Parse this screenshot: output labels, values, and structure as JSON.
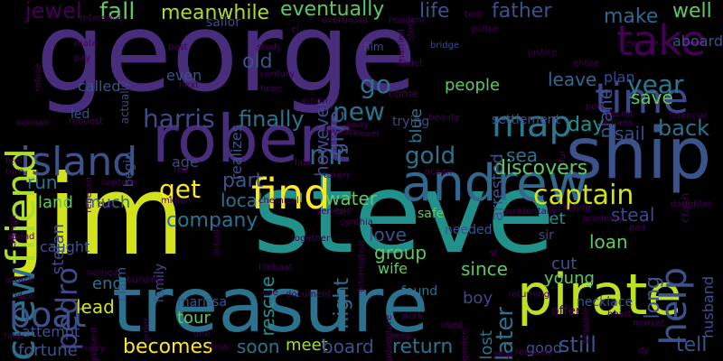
{
  "palette": {
    "background": "#000000",
    "dark_purple": "#440154",
    "purple": "#472d7b",
    "indigo": "#3b528b",
    "blue": "#2c728e",
    "teal": "#21918c",
    "green": "#28ae80",
    "light_green": "#5ec962",
    "lime": "#addc30",
    "yellow": "#fde725"
  },
  "words": [
    {
      "text": "george",
      "color": "#472d7b"
    },
    {
      "text": "jim",
      "color": "#d2e21b"
    },
    {
      "text": "steve",
      "color": "#21918c"
    },
    {
      "text": "robert",
      "color": "#472d7b"
    },
    {
      "text": "ship",
      "color": "#3b528b"
    },
    {
      "text": "treasure",
      "color": "#2c728e"
    },
    {
      "text": "pirate",
      "color": "#bddf26"
    },
    {
      "text": "take",
      "color": "#440154"
    },
    {
      "text": "andrew",
      "color": "#31688e"
    },
    {
      "text": "find",
      "color": "#fde725"
    },
    {
      "text": "island",
      "color": "#3b528b"
    },
    {
      "text": "time",
      "color": "#3e4989"
    },
    {
      "text": "map",
      "color": "#2a788e"
    },
    {
      "text": "friend",
      "color": "#addc30"
    },
    {
      "text": "crew",
      "color": "#2c728e"
    },
    {
      "text": "boat",
      "color": "#3b528b"
    },
    {
      "text": "help",
      "color": "#3b528b"
    },
    {
      "text": "year",
      "color": "#2a788e"
    },
    {
      "text": "captain",
      "color": "#d2e21b"
    },
    {
      "text": "mr",
      "color": "#31688e"
    },
    {
      "text": "gold",
      "color": "#2c728e"
    },
    {
      "text": "harris",
      "color": "#3e4989"
    },
    {
      "text": "pedro",
      "color": "#3e4989"
    },
    {
      "text": "later",
      "color": "#2c728e"
    },
    {
      "text": "new",
      "color": "#2c728e"
    },
    {
      "text": "give",
      "color": "#3b528b"
    },
    {
      "text": "go",
      "color": "#2c728e"
    },
    {
      "text": "back",
      "color": "#2c728e"
    },
    {
      "text": "get",
      "color": "#fde725"
    },
    {
      "text": "jewel",
      "color": "#440154"
    },
    {
      "text": "fall",
      "color": "#5ec962"
    },
    {
      "text": "meanwhile",
      "color": "#addc30"
    },
    {
      "text": "eventually",
      "color": "#5ec962"
    },
    {
      "text": "life",
      "color": "#3b528b"
    },
    {
      "text": "father",
      "color": "#3b528b"
    },
    {
      "text": "make",
      "color": "#31688e"
    },
    {
      "text": "well",
      "color": "#5ec962"
    },
    {
      "text": "old",
      "color": "#3b528b"
    },
    {
      "text": "however",
      "color": "#3e4989"
    },
    {
      "text": "save",
      "color": "#5ec962"
    },
    {
      "text": "leave",
      "color": "#31688e"
    },
    {
      "text": "finally",
      "color": "#2c728e"
    },
    {
      "text": "day",
      "color": "#21918c"
    },
    {
      "text": "sail",
      "color": "#3e4989"
    },
    {
      "text": "sea",
      "color": "#2c728e"
    },
    {
      "text": "discovers",
      "color": "#5ec962"
    },
    {
      "text": "part",
      "color": "#3b528b"
    },
    {
      "text": "local",
      "color": "#2c728e"
    },
    {
      "text": "water",
      "color": "#5ec962"
    },
    {
      "text": "run",
      "color": "#2c728e"
    },
    {
      "text": "land",
      "color": "#5ec962"
    },
    {
      "text": "much",
      "color": "#31688e"
    },
    {
      "text": "night",
      "color": "#2c728e"
    },
    {
      "text": "rescue",
      "color": "#21918c"
    },
    {
      "text": "love",
      "color": "#3b528b"
    },
    {
      "text": "set",
      "color": "#21918c"
    },
    {
      "text": "steal",
      "color": "#3e4989"
    },
    {
      "text": "group",
      "color": "#5ec962"
    },
    {
      "text": "loan",
      "color": "#5ec962"
    },
    {
      "text": "company",
      "color": "#2c728e"
    },
    {
      "text": "since",
      "color": "#5ec962"
    },
    {
      "text": "boy",
      "color": "#3e4989"
    },
    {
      "text": "end",
      "color": "#2c728e"
    },
    {
      "text": "lead",
      "color": "#d2e21b"
    },
    {
      "text": "becomes",
      "color": "#fde725"
    },
    {
      "text": "soon",
      "color": "#2c728e"
    },
    {
      "text": "meet",
      "color": "#addc30"
    },
    {
      "text": "board",
      "color": "#3b528b"
    },
    {
      "text": "return",
      "color": "#2c728e"
    },
    {
      "text": "still",
      "color": "#3b528b"
    },
    {
      "text": "tell",
      "color": "#3b528b"
    },
    {
      "text": "fortune",
      "color": "#3b528b"
    },
    {
      "text": "tour",
      "color": "#5ec962"
    },
    {
      "text": "long",
      "color": "#3b528b"
    },
    {
      "text": "cut",
      "color": "#3b528b"
    },
    {
      "text": "young",
      "color": "#5ec962"
    },
    {
      "text": "stefan",
      "color": "#3e4989"
    },
    {
      "text": "caught",
      "color": "#3b528b"
    },
    {
      "text": "arrested",
      "color": "#3b528b"
    },
    {
      "text": "husband",
      "color": "#3b528b"
    },
    {
      "text": "plane",
      "color": "#3b528b"
    },
    {
      "text": "people",
      "color": "#5ec962"
    },
    {
      "text": "plan",
      "color": "#3e4989"
    },
    {
      "text": "blue",
      "color": "#2c728e"
    },
    {
      "text": "lost",
      "color": "#2c728e"
    },
    {
      "text": "called",
      "color": "#3b528b"
    },
    {
      "text": "even",
      "color": "#3b528b"
    },
    {
      "text": "age",
      "color": "#3e4989"
    },
    {
      "text": "realizes",
      "color": "#3b528b"
    },
    {
      "text": "aboard",
      "color": "#3b528b"
    },
    {
      "text": "sailor",
      "color": "#3e4989"
    },
    {
      "text": "wife",
      "color": "#5ec962"
    },
    {
      "text": "attempt",
      "color": "#3b528b"
    },
    {
      "text": "marissa",
      "color": "#3b528b"
    },
    {
      "text": "claim",
      "color": "#3b528b"
    },
    {
      "text": "family",
      "color": "#3b528b"
    },
    {
      "text": "begin",
      "color": "#3b528b"
    },
    {
      "text": "found",
      "color": "#2c728e"
    },
    {
      "text": "good",
      "color": "#3b528b"
    },
    {
      "text": "necklace",
      "color": "#3b528b"
    },
    {
      "text": "trying",
      "color": "#3e4989"
    },
    {
      "text": "led",
      "color": "#3b528b"
    },
    {
      "text": "settlement",
      "color": "#3b528b"
    },
    {
      "text": "safe",
      "color": "#5ec962"
    },
    {
      "text": "needed",
      "color": "#3b528b"
    },
    {
      "text": "offer",
      "color": "#440154"
    },
    {
      "text": "reference",
      "color": "#440154"
    },
    {
      "text": "refuse",
      "color": "#440154"
    },
    {
      "text": "mate",
      "color": "#440154"
    },
    {
      "text": "pay",
      "color": "#440154"
    },
    {
      "text": "actually",
      "color": "#3e4989"
    },
    {
      "text": "past",
      "color": "#440154"
    },
    {
      "text": "study",
      "color": "#440154"
    },
    {
      "text": "overboard",
      "color": "#440154"
    },
    {
      "text": "resident",
      "color": "#440154"
    },
    {
      "text": "bird",
      "color": "#440154"
    },
    {
      "text": "police",
      "color": "#440154"
    },
    {
      "text": "revenge",
      "color": "#440154"
    },
    {
      "text": "bridge",
      "color": "#3e4989"
    },
    {
      "text": "justice",
      "color": "#440154"
    },
    {
      "text": "film",
      "color": "#3e4989"
    },
    {
      "text": "cadet",
      "color": "#440154"
    },
    {
      "text": "century",
      "color": "#440154"
    },
    {
      "text": "next",
      "color": "#440154"
    },
    {
      "text": "action",
      "color": "#440154"
    },
    {
      "text": "come",
      "color": "#440154"
    },
    {
      "text": "entire",
      "color": "#440154"
    },
    {
      "text": "secret",
      "color": "#440154"
    },
    {
      "text": "financial",
      "color": "#440154"
    },
    {
      "text": "request",
      "color": "#440154"
    },
    {
      "text": "woman",
      "color": "#440154"
    },
    {
      "text": "reveals",
      "color": "#440154"
    },
    {
      "text": "away",
      "color": "#440154"
    },
    {
      "text": "never",
      "color": "#440154"
    },
    {
      "text": "beauty",
      "color": "#440154"
    },
    {
      "text": "arrives",
      "color": "#440154"
    },
    {
      "text": "port",
      "color": "#440154"
    },
    {
      "text": "red",
      "color": "#440154"
    },
    {
      "text": "late",
      "color": "#440154"
    },
    {
      "text": "taken",
      "color": "#440154"
    },
    {
      "text": "ocean",
      "color": "#440154"
    },
    {
      "text": "feel",
      "color": "#440154"
    },
    {
      "text": "turn",
      "color": "#440154"
    },
    {
      "text": "rebecca",
      "color": "#440154"
    },
    {
      "text": "capture",
      "color": "#440154"
    },
    {
      "text": "eye",
      "color": "#440154"
    },
    {
      "text": "million",
      "color": "#440154"
    },
    {
      "text": "chemical",
      "color": "#440154"
    },
    {
      "text": "series",
      "color": "#440154"
    },
    {
      "text": "trio",
      "color": "#440154"
    },
    {
      "text": "cynthia",
      "color": "#440154"
    },
    {
      "text": "accidentally",
      "color": "#440154"
    },
    {
      "text": "including",
      "color": "#440154"
    },
    {
      "text": "academy",
      "color": "#440154"
    },
    {
      "text": "pair",
      "color": "#440154"
    },
    {
      "text": "crash",
      "color": "#440154"
    },
    {
      "text": "daughter",
      "color": "#440154"
    },
    {
      "text": "change",
      "color": "#440154"
    },
    {
      "text": "spend",
      "color": "#440154"
    },
    {
      "text": "initially",
      "color": "#440154"
    },
    {
      "text": "together",
      "color": "#440154"
    },
    {
      "text": "information",
      "color": "#440154"
    },
    {
      "text": "st",
      "color": "#440154"
    },
    {
      "text": "attack",
      "color": "#440154"
    },
    {
      "text": "idea",
      "color": "#440154"
    },
    {
      "text": "named",
      "color": "#440154"
    },
    {
      "text": "building",
      "color": "#440154"
    },
    {
      "text": "lifeboat",
      "color": "#440154"
    },
    {
      "text": "use",
      "color": "#440154"
    },
    {
      "text": "document",
      "color": "#440154"
    },
    {
      "text": "returning",
      "color": "#440154"
    },
    {
      "text": "possible",
      "color": "#440154"
    },
    {
      "text": "heart",
      "color": "#440154"
    },
    {
      "text": "market",
      "color": "#440154"
    },
    {
      "text": "work",
      "color": "#440154"
    },
    {
      "text": "keep",
      "color": "#440154"
    },
    {
      "text": "raid",
      "color": "#440154"
    },
    {
      "text": "order",
      "color": "#440154"
    },
    {
      "text": "present",
      "color": "#440154"
    },
    {
      "text": "one",
      "color": "#440154"
    },
    {
      "text": "harry",
      "color": "#440154"
    },
    {
      "text": "miss",
      "color": "#440154"
    },
    {
      "text": "used",
      "color": "#440154"
    },
    {
      "text": "stop",
      "color": "#440154"
    },
    {
      "text": "rescued",
      "color": "#440154"
    },
    {
      "text": "dy",
      "color": "#440154"
    },
    {
      "text": "adventure",
      "color": "#440154"
    },
    {
      "text": "garden",
      "color": "#440154"
    },
    {
      "text": "story",
      "color": "#440154"
    },
    {
      "text": "married",
      "color": "#440154"
    },
    {
      "text": "fur",
      "color": "#440154"
    },
    {
      "text": "el",
      "color": "#440154"
    },
    {
      "text": "hope",
      "color": "#440154"
    },
    {
      "text": "sir",
      "color": "#3e4989"
    }
  ]
}
